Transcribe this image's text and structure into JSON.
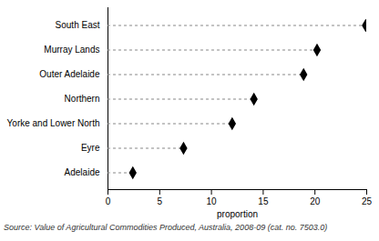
{
  "chart_data": {
    "type": "dot",
    "orientation": "horizontal",
    "categories": [
      "South East",
      "Murray Lands",
      "Outer Adelaide",
      "Northern",
      "Yorke and Lower North",
      "Eyre",
      "Adelaide"
    ],
    "values": [
      24.9,
      20.2,
      18.9,
      14.1,
      12.0,
      7.3,
      2.4
    ],
    "color": "#000000",
    "marker": "diamond",
    "line_style": "dashed",
    "xlabel": "proportion",
    "xlim": [
      0,
      25
    ],
    "xticks": [
      0,
      5,
      10,
      15,
      20,
      25
    ],
    "grid": false,
    "caption": "Source: Value of Agricultural Commodities Produced, Australia, 2008-09 (cat. no. 7503.0)"
  }
}
